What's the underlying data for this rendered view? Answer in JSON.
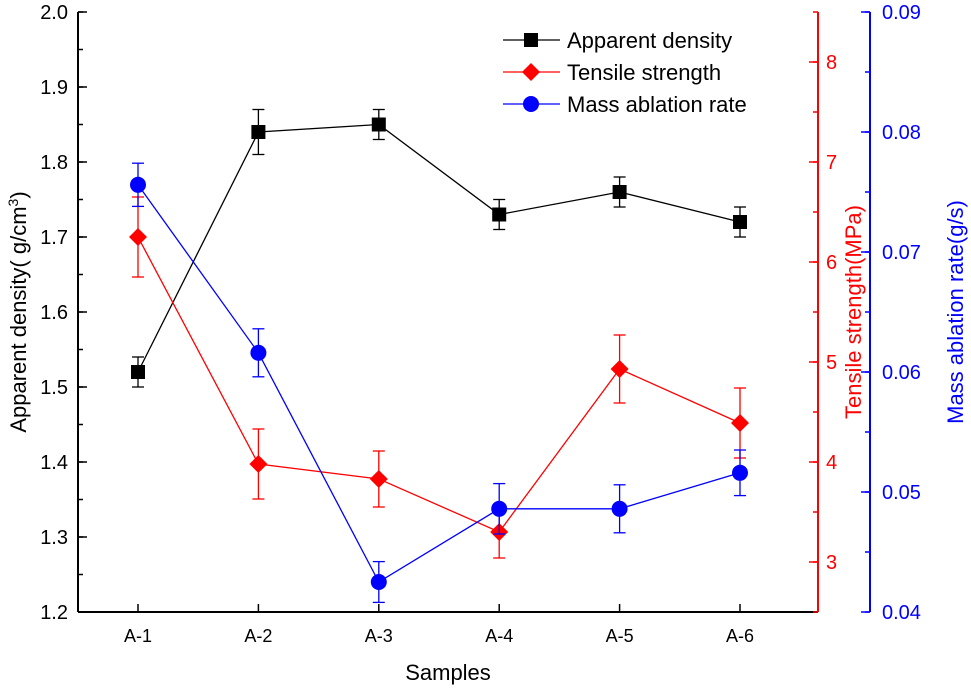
{
  "chart_data": {
    "type": "line",
    "categories": [
      "A-1",
      "A-2",
      "A-3",
      "A-4",
      "A-5",
      "A-6"
    ],
    "xlabel": "Samples",
    "axes": {
      "left": {
        "label": "Apparent density( g/cm",
        "label_sup": "3",
        "label_end": ")",
        "ylim": [
          1.2,
          2.0
        ],
        "ticks": [
          "1.2",
          "1.3",
          "1.4",
          "1.5",
          "1.6",
          "1.7",
          "1.8",
          "1.9",
          "2.0"
        ],
        "color": "#000000"
      },
      "right1": {
        "label": "Tensile strength(MPa)",
        "ylim": [
          2.5,
          8.5
        ],
        "ticks": [
          "3",
          "4",
          "5",
          "6",
          "7",
          "8"
        ],
        "color": "#ff0000"
      },
      "right2": {
        "label": "Mass ablation rate(g/s)",
        "ylim": [
          0.04,
          0.09
        ],
        "ticks": [
          "0.04",
          "0.05",
          "0.06",
          "0.07",
          "0.08",
          "0.09"
        ],
        "color": "#0000ff"
      }
    },
    "series": [
      {
        "name": "Apparent density",
        "axis": "left",
        "marker": "square",
        "color": "#000000",
        "values": [
          1.52,
          1.84,
          1.85,
          1.73,
          1.76,
          1.72
        ],
        "errors": [
          0.02,
          0.03,
          0.02,
          0.02,
          0.02,
          0.02
        ]
      },
      {
        "name": "Tensile strength",
        "axis": "right1",
        "marker": "diamond",
        "color": "#ff0000",
        "values": [
          6.25,
          3.98,
          3.83,
          3.3,
          4.93,
          4.39
        ],
        "errors": [
          0.4,
          0.35,
          0.28,
          0.26,
          0.34,
          0.35
        ]
      },
      {
        "name": "Mass ablation rate",
        "axis": "right2",
        "marker": "circle",
        "color": "#0000ff",
        "values": [
          0.0756,
          0.0616,
          0.0425,
          0.0486,
          0.0486,
          0.0516
        ],
        "errors": [
          0.0018,
          0.002,
          0.0017,
          0.0021,
          0.002,
          0.0019
        ]
      }
    ],
    "legend": "top-right",
    "grid": false
  }
}
